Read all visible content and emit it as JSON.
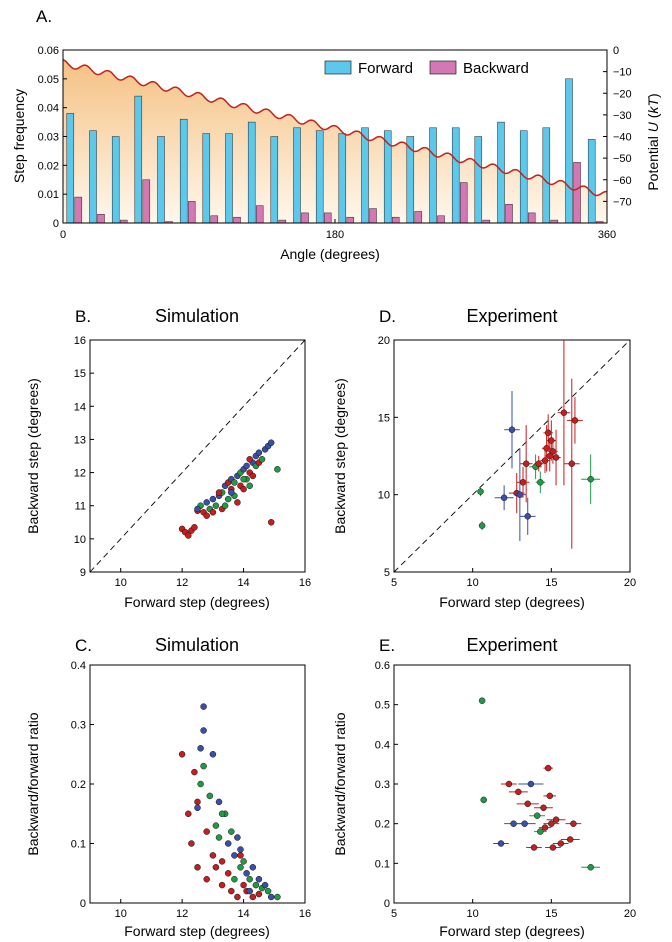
{
  "chart_data": [
    {
      "panel": "A.",
      "type": "bar",
      "title": "",
      "xlabel": "Angle (degrees)",
      "ylabel": "Step frequency",
      "ylabel_right": "Potential U (kT)",
      "ylabel_right_parts": [
        "Potential ",
        "U",
        " (",
        "kT",
        ")"
      ],
      "xlim": [
        0,
        360
      ],
      "ylim": [
        0,
        0.06
      ],
      "ylim_right": [
        -80,
        0
      ],
      "xticks": [
        "0",
        "180",
        "360"
      ],
      "yticks": [
        "0",
        "0.01",
        "0.02",
        "0.03",
        "0.04",
        "0.05",
        "0.06"
      ],
      "yticks_right": [
        "0",
        "−10",
        "−20",
        "−30",
        "−40",
        "−50",
        "−60",
        "−70"
      ],
      "legend": "top-center",
      "series": [
        {
          "name": "Forward",
          "color": "#5bc8ec",
          "values": [
            0.038,
            0.032,
            0.03,
            0.044,
            0.03,
            0.036,
            0.031,
            0.031,
            0.035,
            0.03,
            0.033,
            0.032,
            0.031,
            0.033,
            0.032,
            0.03,
            0.033,
            0.033,
            0.03,
            0.035,
            0.032,
            0.033,
            0.05,
            0.029
          ]
        },
        {
          "name": "Backward",
          "color": "#d378b5",
          "values": [
            0.009,
            0.003,
            0.001,
            0.015,
            0.0005,
            0.0075,
            0.0025,
            0.002,
            0.006,
            0.001,
            0.0035,
            0.0035,
            0.002,
            0.005,
            0.002,
            0.004,
            0.0025,
            0.014,
            0.001,
            0.0065,
            0.0035,
            0.001,
            0.021,
            0.0005
          ]
        }
      ],
      "potential": {
        "name": "Potential",
        "color": "#c0241c",
        "start": -6,
        "end": -67,
        "wells": 24,
        "ripple": 1.5
      }
    },
    {
      "panel": "B.",
      "type": "scatter",
      "title": "Simulation",
      "xlabel": "Forward step (degrees)",
      "ylabel": "Backward step (degrees)",
      "xlim": [
        9,
        16
      ],
      "ylim": [
        9,
        16
      ],
      "xticks": [
        10,
        12,
        14,
        16
      ],
      "yticks": [
        9,
        10,
        11,
        12,
        13,
        14,
        15,
        16
      ],
      "diagonal": true,
      "points": [
        [
          12.0,
          10.3,
          "r"
        ],
        [
          12.1,
          10.2,
          "r"
        ],
        [
          12.2,
          10.1,
          "r"
        ],
        [
          12.3,
          10.25,
          "r"
        ],
        [
          12.4,
          10.35,
          "r"
        ],
        [
          12.5,
          10.85,
          "r"
        ],
        [
          12.6,
          11.0,
          "g"
        ],
        [
          12.5,
          10.9,
          "b"
        ],
        [
          12.7,
          10.8,
          "r"
        ],
        [
          12.8,
          11.1,
          "b"
        ],
        [
          12.9,
          10.9,
          "g"
        ],
        [
          13.0,
          11.2,
          "b"
        ],
        [
          13.0,
          10.8,
          "r"
        ],
        [
          13.1,
          11.0,
          "g"
        ],
        [
          13.2,
          11.3,
          "b"
        ],
        [
          13.3,
          10.9,
          "r"
        ],
        [
          13.3,
          11.4,
          "g"
        ],
        [
          13.4,
          11.6,
          "b"
        ],
        [
          13.5,
          11.2,
          "g"
        ],
        [
          13.5,
          11.7,
          "r"
        ],
        [
          13.6,
          11.5,
          "r"
        ],
        [
          13.6,
          11.8,
          "b"
        ],
        [
          13.7,
          11.3,
          "g"
        ],
        [
          13.7,
          11.7,
          "g"
        ],
        [
          13.8,
          11.9,
          "b"
        ],
        [
          13.8,
          11.1,
          "r"
        ],
        [
          13.9,
          11.6,
          "r"
        ],
        [
          13.9,
          12.0,
          "g"
        ],
        [
          14.0,
          12.1,
          "b"
        ],
        [
          14.0,
          11.5,
          "r"
        ],
        [
          14.1,
          11.8,
          "g"
        ],
        [
          14.1,
          12.2,
          "b"
        ],
        [
          14.2,
          12.0,
          "r"
        ],
        [
          14.2,
          11.6,
          "g"
        ],
        [
          14.3,
          12.3,
          "b"
        ],
        [
          14.3,
          11.9,
          "r"
        ],
        [
          14.4,
          12.2,
          "g"
        ],
        [
          14.4,
          12.5,
          "b"
        ],
        [
          14.5,
          12.3,
          "r"
        ],
        [
          14.5,
          12.6,
          "b"
        ],
        [
          14.6,
          12.4,
          "g"
        ],
        [
          14.7,
          12.7,
          "b"
        ],
        [
          14.8,
          12.8,
          "b"
        ],
        [
          14.9,
          12.9,
          "b"
        ],
        [
          14.9,
          10.5,
          "r"
        ],
        [
          15.1,
          12.1,
          "g"
        ],
        [
          13.2,
          11.4,
          "r"
        ],
        [
          13.4,
          11.0,
          "g"
        ],
        [
          12.8,
          10.7,
          "r"
        ],
        [
          13.6,
          11.4,
          "b"
        ],
        [
          14.0,
          11.8,
          "g"
        ],
        [
          14.2,
          12.4,
          "r"
        ]
      ]
    },
    {
      "panel": "C.",
      "type": "scatter",
      "title": "Simulation",
      "xlabel": "Forward step (degrees)",
      "ylabel": "Backward/forward ratio",
      "xlim": [
        9,
        16
      ],
      "ylim": [
        0,
        0.4
      ],
      "xticks": [
        10,
        12,
        14,
        16
      ],
      "yticks": [
        "0",
        "0.1",
        "0.2",
        "0.3",
        "0.4"
      ],
      "points": [
        [
          12.0,
          0.25,
          "r"
        ],
        [
          12.2,
          0.15,
          "r"
        ],
        [
          12.3,
          0.1,
          "r"
        ],
        [
          12.4,
          0.22,
          "r"
        ],
        [
          12.5,
          0.17,
          "r"
        ],
        [
          12.5,
          0.06,
          "r"
        ],
        [
          12.6,
          0.26,
          "b"
        ],
        [
          12.6,
          0.2,
          "g"
        ],
        [
          12.7,
          0.33,
          "b"
        ],
        [
          12.7,
          0.29,
          "b"
        ],
        [
          12.7,
          0.23,
          "g"
        ],
        [
          12.8,
          0.12,
          "r"
        ],
        [
          12.8,
          0.04,
          "r"
        ],
        [
          12.9,
          0.18,
          "g"
        ],
        [
          13.0,
          0.25,
          "b"
        ],
        [
          13.0,
          0.08,
          "r"
        ],
        [
          13.1,
          0.13,
          "g"
        ],
        [
          13.1,
          0.06,
          "r"
        ],
        [
          13.2,
          0.17,
          "b"
        ],
        [
          13.2,
          0.11,
          "g"
        ],
        [
          13.3,
          0.03,
          "r"
        ],
        [
          13.3,
          0.07,
          "r"
        ],
        [
          13.4,
          0.15,
          "g"
        ],
        [
          13.5,
          0.1,
          "b"
        ],
        [
          13.5,
          0.05,
          "r"
        ],
        [
          13.6,
          0.12,
          "g"
        ],
        [
          13.6,
          0.02,
          "r"
        ],
        [
          13.7,
          0.08,
          "b"
        ],
        [
          13.7,
          0.04,
          "g"
        ],
        [
          13.8,
          0.11,
          "b"
        ],
        [
          13.8,
          0.01,
          "r"
        ],
        [
          13.9,
          0.06,
          "g"
        ],
        [
          13.9,
          0.09,
          "b"
        ],
        [
          14.0,
          0.03,
          "r"
        ],
        [
          14.0,
          0.07,
          "g"
        ],
        [
          14.1,
          0.05,
          "b"
        ],
        [
          14.1,
          0.02,
          "r"
        ],
        [
          14.2,
          0.04,
          "g"
        ],
        [
          14.3,
          0.06,
          "b"
        ],
        [
          14.3,
          0.01,
          "r"
        ],
        [
          14.4,
          0.03,
          "g"
        ],
        [
          14.5,
          0.04,
          "b"
        ],
        [
          14.5,
          0.015,
          "r"
        ],
        [
          14.6,
          0.025,
          "g"
        ],
        [
          14.7,
          0.03,
          "b"
        ],
        [
          14.8,
          0.02,
          "g"
        ],
        [
          14.9,
          0.01,
          "b"
        ],
        [
          15.1,
          0.01,
          "g"
        ],
        [
          12.5,
          0.16,
          "b"
        ],
        [
          13.3,
          0.15,
          "g"
        ],
        [
          13.9,
          0.08,
          "r"
        ],
        [
          14.2,
          0.02,
          "b"
        ]
      ]
    },
    {
      "panel": "D.",
      "type": "scatter",
      "title": "Experiment",
      "xlabel": "Forward step (degrees)",
      "ylabel": "Backward step (degrees)",
      "xlim": [
        5,
        20
      ],
      "ylim": [
        5,
        20
      ],
      "xticks": [
        5,
        10,
        15,
        20
      ],
      "yticks": [
        5,
        10,
        15,
        20
      ],
      "diagonal": true,
      "points": [
        {
          "x": 10.5,
          "y": 10.2,
          "xe": 0,
          "ye": 0.3,
          "c": "g"
        },
        {
          "x": 10.6,
          "y": 8.0,
          "xe": 0,
          "ye": 0.3,
          "c": "g"
        },
        {
          "x": 12.0,
          "y": 9.8,
          "xe": 0.6,
          "ye": 0.8,
          "c": "b"
        },
        {
          "x": 12.5,
          "y": 14.2,
          "xe": 0.5,
          "ye": 2.5,
          "c": "b"
        },
        {
          "x": 12.8,
          "y": 10.1,
          "xe": 0.5,
          "ye": 1.3,
          "c": "r"
        },
        {
          "x": 13.0,
          "y": 10.0,
          "xe": 0.4,
          "ye": 3.0,
          "c": "b"
        },
        {
          "x": 13.2,
          "y": 10.8,
          "xe": 0.4,
          "ye": 1.0,
          "c": "r"
        },
        {
          "x": 13.4,
          "y": 12.0,
          "xe": 0.4,
          "ye": 2.5,
          "c": "r"
        },
        {
          "x": 13.5,
          "y": 8.6,
          "xe": 0.5,
          "ye": 1.2,
          "c": "b"
        },
        {
          "x": 14.0,
          "y": 11.8,
          "xe": 0.4,
          "ye": 0.8,
          "c": "g"
        },
        {
          "x": 14.2,
          "y": 12.0,
          "xe": 0.3,
          "ye": 0.5,
          "c": "r"
        },
        {
          "x": 14.3,
          "y": 10.8,
          "xe": 0.3,
          "ye": 0.7,
          "c": "g"
        },
        {
          "x": 14.6,
          "y": 12.2,
          "xe": 0.3,
          "ye": 0.8,
          "c": "r"
        },
        {
          "x": 14.7,
          "y": 13.0,
          "xe": 0.3,
          "ye": 1.5,
          "c": "r"
        },
        {
          "x": 14.8,
          "y": 14.0,
          "xe": 0.3,
          "ye": 1.2,
          "c": "r"
        },
        {
          "x": 14.9,
          "y": 12.5,
          "xe": 0.3,
          "ye": 1.0,
          "c": "r"
        },
        {
          "x": 15.0,
          "y": 13.5,
          "xe": 0.3,
          "ye": 1.3,
          "c": "r"
        },
        {
          "x": 15.1,
          "y": 12.8,
          "xe": 0.3,
          "ye": 0.8,
          "c": "r"
        },
        {
          "x": 15.3,
          "y": 12.4,
          "xe": 0.3,
          "ye": 1.8,
          "c": "r"
        },
        {
          "x": 15.8,
          "y": 15.3,
          "xe": 0.4,
          "ye": 4.7,
          "c": "r"
        },
        {
          "x": 16.3,
          "y": 12.0,
          "xe": 0.5,
          "ye": 5.5,
          "c": "r"
        },
        {
          "x": 16.5,
          "y": 14.8,
          "xe": 0.5,
          "ye": 1.5,
          "c": "r"
        },
        {
          "x": 17.5,
          "y": 11.0,
          "xe": 0.6,
          "ye": 1.6,
          "c": "g"
        }
      ]
    },
    {
      "panel": "E.",
      "type": "scatter",
      "title": "Experiment",
      "xlabel": "Forward step (degrees)",
      "ylabel": "Backward/forward ratio",
      "xlim": [
        5,
        20
      ],
      "ylim": [
        0,
        0.6
      ],
      "xticks": [
        5,
        10,
        15,
        20
      ],
      "yticks": [
        "0",
        "0.1",
        "0.2",
        "0.3",
        "0.4",
        "0.5",
        "0.6"
      ],
      "points": [
        {
          "x": 10.6,
          "y": 0.51,
          "xe": 0,
          "c": "g"
        },
        {
          "x": 10.7,
          "y": 0.26,
          "xe": 0,
          "c": "g"
        },
        {
          "x": 11.8,
          "y": 0.15,
          "xe": 0.5,
          "c": "b"
        },
        {
          "x": 12.3,
          "y": 0.3,
          "xe": 0.5,
          "c": "r"
        },
        {
          "x": 12.6,
          "y": 0.2,
          "xe": 0.6,
          "c": "b"
        },
        {
          "x": 12.9,
          "y": 0.28,
          "xe": 0.6,
          "c": "r"
        },
        {
          "x": 13.3,
          "y": 0.2,
          "xe": 0.7,
          "c": "b"
        },
        {
          "x": 13.5,
          "y": 0.25,
          "xe": 0.7,
          "c": "r"
        },
        {
          "x": 13.7,
          "y": 0.3,
          "xe": 0.8,
          "c": "b"
        },
        {
          "x": 13.9,
          "y": 0.14,
          "xe": 0.5,
          "c": "r"
        },
        {
          "x": 14.1,
          "y": 0.22,
          "xe": 0.5,
          "c": "g"
        },
        {
          "x": 14.3,
          "y": 0.18,
          "xe": 0.4,
          "c": "g"
        },
        {
          "x": 14.5,
          "y": 0.24,
          "xe": 0.6,
          "c": "r"
        },
        {
          "x": 14.6,
          "y": 0.19,
          "xe": 0.4,
          "c": "r"
        },
        {
          "x": 14.8,
          "y": 0.34,
          "xe": 0.3,
          "c": "r"
        },
        {
          "x": 14.9,
          "y": 0.27,
          "xe": 0.4,
          "c": "r"
        },
        {
          "x": 15.0,
          "y": 0.2,
          "xe": 0.5,
          "c": "r"
        },
        {
          "x": 15.1,
          "y": 0.14,
          "xe": 0.5,
          "c": "r"
        },
        {
          "x": 15.3,
          "y": 0.21,
          "xe": 0.6,
          "c": "r"
        },
        {
          "x": 15.6,
          "y": 0.15,
          "xe": 0.5,
          "c": "r"
        },
        {
          "x": 16.2,
          "y": 0.16,
          "xe": 0.6,
          "c": "r"
        },
        {
          "x": 16.4,
          "y": 0.2,
          "xe": 0.5,
          "c": "r"
        },
        {
          "x": 17.5,
          "y": 0.09,
          "xe": 0.6,
          "c": "g"
        }
      ]
    }
  ],
  "colors": {
    "r": "#c41e1e",
    "g": "#219a45",
    "b": "#3a4fa8",
    "axis": "#000000",
    "fill_top": "#f5c183",
    "fill_bottom": "#fff7ec"
  }
}
